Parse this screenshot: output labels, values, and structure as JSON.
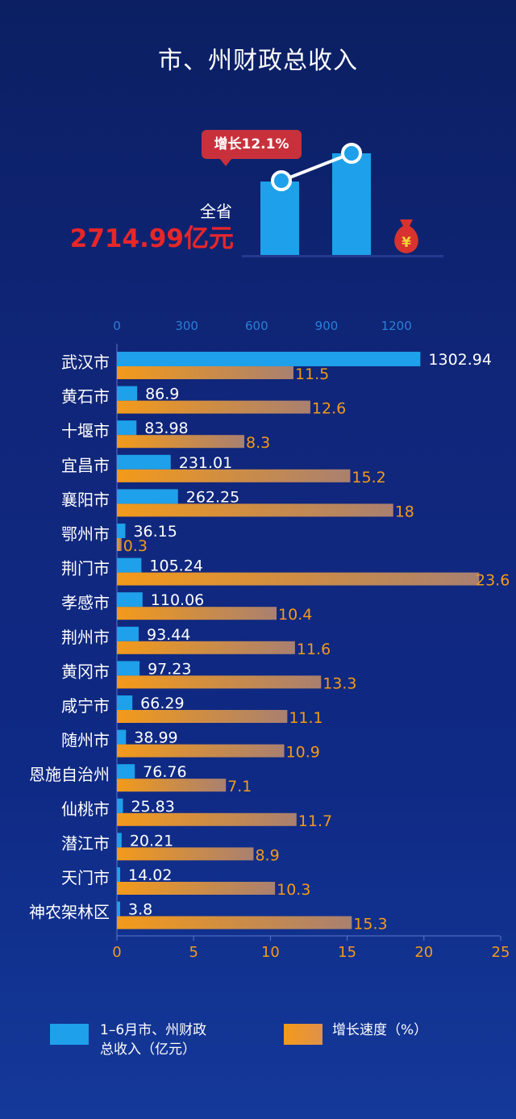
{
  "title": "市、州财政总收入",
  "summary": {
    "growth_label": "增长12.1%",
    "province_label": "全省",
    "total": "2714.99亿元"
  },
  "chart_data": {
    "type": "bar",
    "categories": [
      "武汉市",
      "黄石市",
      "十堰市",
      "宜昌市",
      "襄阳市",
      "鄂州市",
      "荆门市",
      "孝感市",
      "荆州市",
      "黄冈市",
      "咸宁市",
      "随州市",
      "恩施自治州",
      "仙桃市",
      "潜江市",
      "天门市",
      "神农架林区"
    ],
    "series": [
      {
        "name": "1–6月市、州财政总收入（亿元）",
        "axis": "top",
        "color": "#1ea0ea",
        "values": [
          1302.94,
          86.9,
          83.98,
          231.01,
          262.25,
          36.15,
          105.24,
          110.06,
          93.44,
          97.23,
          66.29,
          38.99,
          76.76,
          25.83,
          20.21,
          14.02,
          3.8
        ]
      },
      {
        "name": "增长速度（%）",
        "axis": "bottom",
        "color": "#f39a1a",
        "values": [
          11.5,
          12.6,
          8.3,
          15.2,
          18,
          0.3,
          23.6,
          10.4,
          11.6,
          13.3,
          11.1,
          10.9,
          7.1,
          11.7,
          8.9,
          10.3,
          15.3
        ]
      }
    ],
    "top_axis": {
      "ticks": [
        0,
        300,
        600,
        900,
        1200
      ],
      "range": [
        0,
        1350
      ]
    },
    "bottom_axis": {
      "ticks": [
        0,
        5,
        10,
        15,
        20,
        25
      ],
      "range": [
        0,
        25
      ]
    },
    "legend_position": "bottom"
  },
  "legend": {
    "revenue_line1": "1–6月市、州财政",
    "revenue_line2": "总收入（亿元）",
    "growth": "增长速度（%）"
  },
  "colors": {
    "background": "#0f2a85",
    "revenue_bar": "#1ea0ea",
    "growth_bar": "#f39a1a",
    "highlight_red": "#e8262a"
  }
}
